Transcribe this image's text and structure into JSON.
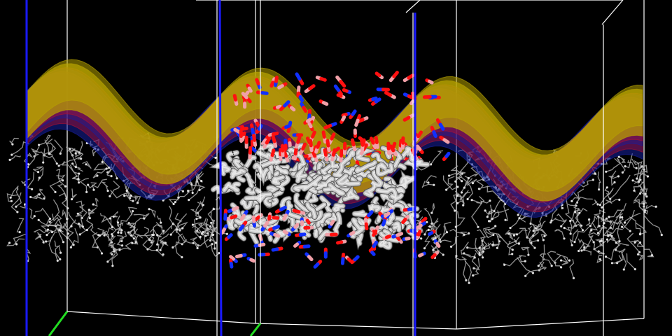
{
  "scene": {
    "background": "#000000",
    "colors": {
      "box_edge": "#ffffff",
      "z_axis": "#1a1aff",
      "x_axis": "#22dd22",
      "surface_gold": "#b8a400",
      "surface_red": "#b01030",
      "surface_blue": "#1520a0",
      "lipid_tail": "#c8c8c8",
      "lipid_tail_thin": "#aaaaaa",
      "ester_pink": "#f0a0a8",
      "oxygen": "#ff1010",
      "nitrogen": "#1030ff"
    },
    "elements": {
      "periodic_boxes": "box-outline",
      "membrane_surfaces": "layered-sinusoidal-surface",
      "lipid_bilayer_center": "licorice-representation",
      "lipid_bilayer_images": "line-representation"
    }
  }
}
